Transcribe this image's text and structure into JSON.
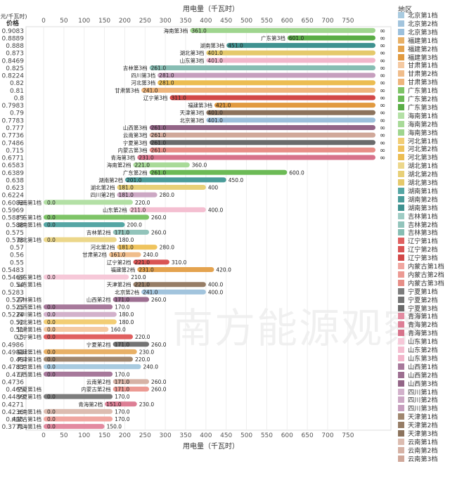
{
  "chart_data": {
    "type": "bar",
    "title": "",
    "xlabel": "用电量（千瓦时）",
    "ylabel": "(元/千瓦时)\n价格",
    "xlim": [
      0,
      800
    ],
    "x_ticks": [
      0,
      50,
      100,
      150,
      200,
      250,
      300,
      350,
      400,
      450,
      500,
      550,
      600,
      650,
      700,
      750
    ],
    "legend_title": "地区",
    "legend_position": "right",
    "infinity_label": "∞",
    "colors": {
      "北京第1档": "#a9cbe0",
      "北京第2档": "#a2c4dd",
      "北京第3档": "#9cc0dc",
      "福建第1档": "#e8b066",
      "福建第2档": "#e4a34f",
      "福建第3档": "#e19a40",
      "甘肃第1档": "#f4c9a1",
      "甘肃第2档": "#f0bd8b",
      "甘肃第3档": "#eeb57c",
      "广东第1档": "#7ec467",
      "广东第2档": "#6cba56",
      "广东第3档": "#5aad46",
      "海南第1档": "#b3e0a5",
      "海南第2档": "#a8da98",
      "海南第3档": "#9fd58e",
      "河北第1档": "#f2cd74",
      "河北第2档": "#efc45e",
      "河北第3档": "#ecbd52",
      "湖北第1档": "#ecd78a",
      "湖北第2档": "#e8d078",
      "湖北第3档": "#e5c96b",
      "湖南第1档": "#55a6a4",
      "湖南第2档": "#4a9c9a",
      "湖南第3档": "#3f9290",
      "吉林第1档": "#9fccc4",
      "吉林第2档": "#92c4bb",
      "吉林第3档": "#87bdb3",
      "辽宁第1档": "#e06060",
      "辽宁第2档": "#d95454",
      "辽宁第3档": "#d24848",
      "内蒙古第1档": "#f0a6a0",
      "内蒙古第2档": "#ec9a93",
      "内蒙古第3档": "#e78e87",
      "宁夏第1档": "#7d7d7d",
      "宁夏第2档": "#747474",
      "宁夏第3档": "#6b6b6b",
      "青海第1档": "#e38aa0",
      "青海第2档": "#dd7e95",
      "青海第3档": "#d7728a",
      "山东第1档": "#f6c8d8",
      "山东第2档": "#f4bfd1",
      "山东第3档": "#f2b6cb",
      "山西第1档": "#a7799b",
      "山西第2档": "#9d6f91",
      "山西第3档": "#936587",
      "四川第1档": "#d2b1cb",
      "四川第2档": "#cca8c4",
      "四川第3档": "#c69fbe",
      "天津第1档": "#a0876f",
      "天津第2档": "#967d66",
      "天津第3档": "#8c735d",
      "云南第1档": "#dcbcb0",
      "云南第2档": "#d6b2a5",
      "云南第3档": "#d0a89a"
    },
    "series_order": [
      "北京第1档",
      "北京第2档",
      "北京第3档",
      "福建第1档",
      "福建第2档",
      "福建第3档",
      "甘肃第1档",
      "甘肃第2档",
      "甘肃第3档",
      "广东第1档",
      "广东第2档",
      "广东第3档",
      "海南第1档",
      "海南第2档",
      "海南第3档",
      "河北第1档",
      "河北第2档",
      "河北第3档",
      "湖北第1档",
      "湖北第2档",
      "湖北第3档",
      "湖南第1档",
      "湖南第2档",
      "湖南第3档",
      "吉林第1档",
      "吉林第2档",
      "吉林第3档",
      "辽宁第1档",
      "辽宁第2档",
      "辽宁第3档",
      "内蒙古第1档",
      "内蒙古第2档",
      "内蒙古第3档",
      "宁夏第1档",
      "宁夏第2档",
      "宁夏第3档",
      "青海第1档",
      "青海第2档",
      "青海第3档",
      "山东第1档",
      "山东第2档",
      "山东第3档",
      "山西第1档",
      "山西第2档",
      "山西第3档",
      "四川第1档",
      "四川第2档",
      "四川第3档",
      "天津第1档",
      "天津第2档",
      "天津第3档",
      "云南第1档",
      "云南第2档",
      "云南第3档"
    ],
    "rows": [
      {
        "price": "0.9083",
        "bars": [
          {
            "series": "海南第3档",
            "start": 361.0,
            "start_label": "361.0",
            "end": null
          }
        ]
      },
      {
        "price": "0.8889",
        "bars": [
          {
            "series": "广东第3档",
            "start": 601.0,
            "start_label": "601.0",
            "end": null
          }
        ]
      },
      {
        "price": "0.888",
        "bars": [
          {
            "series": "湖南第3档",
            "start": 451.0,
            "start_label": "451.0",
            "end": null
          }
        ]
      },
      {
        "price": "0.873",
        "bars": [
          {
            "series": "湖北第3档",
            "start": 401.0,
            "start_label": "401.0",
            "end": null
          }
        ]
      },
      {
        "price": "0.8469",
        "bars": [
          {
            "series": "山东第3档",
            "start": 401.0,
            "start_label": "401.0",
            "end": null
          }
        ]
      },
      {
        "price": "0.825",
        "bars": [
          {
            "series": "吉林第3档",
            "start": 261.0,
            "start_label": "261.0",
            "end": null
          }
        ]
      },
      {
        "price": "0.8224",
        "bars": [
          {
            "series": "四川第3档",
            "start": 281.0,
            "start_label": "281.0",
            "end": null
          }
        ]
      },
      {
        "price": "0.82",
        "bars": [
          {
            "series": "河北第3档",
            "start": 281.0,
            "start_label": "281.0",
            "end": null
          }
        ]
      },
      {
        "price": "0.81",
        "bars": [
          {
            "series": "甘肃第3档",
            "start": 241.0,
            "start_label": "241.0",
            "end": null
          }
        ]
      },
      {
        "price": "0.8",
        "bars": [
          {
            "series": "辽宁第3档",
            "start": 311.0,
            "start_label": "311.0",
            "end": null
          }
        ]
      },
      {
        "price": "0.7983",
        "bars": [
          {
            "series": "福建第3档",
            "start": 421.0,
            "start_label": "421.0",
            "end": null
          }
        ]
      },
      {
        "price": "0.79",
        "bars": [
          {
            "series": "天津第3档",
            "start": 401.0,
            "start_label": "401.0",
            "end": null
          }
        ]
      },
      {
        "price": "0.7783",
        "bars": [
          {
            "series": "北京第3档",
            "start": 401.0,
            "start_label": "401.0",
            "end": null
          }
        ]
      },
      {
        "price": "0.777",
        "bars": [
          {
            "series": "山西第3档",
            "start": 261.0,
            "start_label": "261.0",
            "end": null
          }
        ]
      },
      {
        "price": "0.7736",
        "bars": [
          {
            "series": "云南第3档",
            "start": 261.0,
            "start_label": "261.0",
            "end": null
          }
        ]
      },
      {
        "price": "0.7486",
        "bars": [
          {
            "series": "宁夏第3档",
            "start": 261.0,
            "start_label": "261.0",
            "end": null
          }
        ]
      },
      {
        "price": "0.715",
        "bars": [
          {
            "series": "内蒙古第3档",
            "start": 261.0,
            "start_label": "261.0",
            "end": null
          }
        ]
      },
      {
        "price": "0.6771",
        "bars": [
          {
            "series": "青海第3档",
            "start": 231.0,
            "start_label": "231.0",
            "end": null
          }
        ]
      },
      {
        "price": "0.6583",
        "bars": [
          {
            "series": "海南第2档",
            "start": 221.0,
            "start_label": "221.0",
            "end": 360.0,
            "end_label": "360.0"
          }
        ]
      },
      {
        "price": "0.6389",
        "bars": [
          {
            "series": "广东第2档",
            "start": 261.0,
            "start_label": "261.0",
            "end": 600.0,
            "end_label": "600.0"
          }
        ]
      },
      {
        "price": "0.638",
        "bars": [
          {
            "series": "湖南第2档",
            "start": 201.0,
            "start_label": "201.0",
            "end": 450.0,
            "end_label": "450.0"
          }
        ]
      },
      {
        "price": "0.623",
        "bars": [
          {
            "series": "湖北第2档",
            "start": 181.0,
            "start_label": "181.0",
            "end": 400.0,
            "end_label": "400"
          }
        ]
      },
      {
        "price": "0.6224",
        "bars": [
          {
            "series": "四川第2档",
            "start": 181.0,
            "start_label": "181.0",
            "end": 280.0,
            "end_label": "280.0"
          }
        ]
      },
      {
        "price": "0.6083",
        "bars": [
          {
            "series": "海南第1档",
            "start": 0.0,
            "start_label": "0.0",
            "end": 220.0,
            "end_label": "220.0"
          }
        ]
      },
      {
        "price": "0.5969",
        "bars": [
          {
            "series": "山东第2档",
            "start": 211.0,
            "start_label": "211.0",
            "end": 400.0,
            "end_label": "400.0"
          }
        ]
      },
      {
        "price": "0.5889",
        "bars": [
          {
            "series": "广东第1档",
            "start": 0.0,
            "start_label": "0.0",
            "end": 260.0,
            "end_label": "260.0"
          }
        ]
      },
      {
        "price": "0.588",
        "bars": [
          {
            "series": "湖南第1档",
            "start": 0.0,
            "start_label": "0.0",
            "end": 200.0,
            "end_label": "200.0"
          }
        ]
      },
      {
        "price": "0.575",
        "bars": [
          {
            "series": "吉林第2档",
            "start": 171.0,
            "start_label": "171.0",
            "end": 260.0,
            "end_label": "260.0"
          }
        ]
      },
      {
        "price": "0.573",
        "bars": [
          {
            "series": "湖北第1档",
            "start": 0.0,
            "start_label": "0.0",
            "end": 180.0,
            "end_label": "180.0"
          }
        ]
      },
      {
        "price": "0.57",
        "bars": [
          {
            "series": "河北第2档",
            "start": 181.0,
            "start_label": "181.0",
            "end": 280.0,
            "end_label": "280.0"
          }
        ]
      },
      {
        "price": "0.56",
        "bars": [
          {
            "series": "甘肃第2档",
            "start": 161.0,
            "start_label": "161.0",
            "end": 240.0,
            "end_label": "240.0"
          }
        ]
      },
      {
        "price": "0.55",
        "bars": [
          {
            "series": "辽宁第2档",
            "start": 221.0,
            "start_label": "221.0",
            "end": 310.0,
            "end_label": "310.0"
          }
        ]
      },
      {
        "price": "0.5483",
        "bars": [
          {
            "series": "福建第2档",
            "start": 231.0,
            "start_label": "231.0",
            "end": 420.0,
            "end_label": "420.0"
          }
        ]
      },
      {
        "price": "0.5469",
        "bars": [
          {
            "series": "山东第1档",
            "start": 0.0,
            "start_label": "0.0",
            "end": 210.0,
            "end_label": "210.0"
          }
        ]
      },
      {
        "price": "0.54",
        "bars": [
          {
            "series": "山东第1档",
            "start": 0.0,
            "end": 0.0
          },
          {
            "series": "天津第2档",
            "start": 221.0,
            "start_label": "221.0",
            "end": 400.0,
            "end_label": "400.0"
          }
        ]
      },
      {
        "price": "0.5283",
        "bars": [
          {
            "series": "北京第2档",
            "start": 241.0,
            "start_label": "241.0",
            "end": 400.0,
            "end_label": "400.0"
          }
        ]
      },
      {
        "price": "0.527",
        "bars": [
          {
            "series": "吉林第1档",
            "start": 0.0,
            "end": 0.0
          },
          {
            "series": "山西第2档",
            "start": 171.0,
            "start_label": "171.0",
            "end": 260.0,
            "end_label": "260.0"
          }
        ]
      },
      {
        "price": "0.525",
        "bars": [
          {
            "series": "山西第1档",
            "start": 0.0,
            "start_label": "0.0",
            "end": 170.0,
            "end_label": "170.0"
          }
        ]
      },
      {
        "price": "0.5224",
        "bars": [
          {
            "series": "四川第1档",
            "start": 0.0,
            "start_label": "0.0",
            "end": 180.0,
            "end_label": "180.0"
          }
        ]
      },
      {
        "price": "0.52",
        "bars": [
          {
            "series": "河北第1档",
            "start": 0.0,
            "start_label": "0.0",
            "end": 180.0,
            "end_label": "180.0"
          }
        ]
      },
      {
        "price": "0.51",
        "bars": [
          {
            "series": "甘肃第1档",
            "start": 0.0,
            "start_label": "0.0",
            "end": 160.0,
            "end_label": "160.0"
          }
        ]
      },
      {
        "price": "0.5",
        "bars": [
          {
            "series": "辽宁第1档",
            "start": 0.0,
            "start_label": "0.0",
            "end": 220.0,
            "end_label": "220.0"
          }
        ]
      },
      {
        "price": "0.4986",
        "bars": [
          {
            "series": "宁夏第2档",
            "start": 171.0,
            "start_label": "171.0",
            "end": 260.0,
            "end_label": "260.0"
          }
        ]
      },
      {
        "price": "0.4983",
        "bars": [
          {
            "series": "福建第1档",
            "start": 0.0,
            "start_label": "0.0",
            "end": 230.0,
            "end_label": "230.0"
          }
        ]
      },
      {
        "price": "0.49",
        "bars": [
          {
            "series": "天津第1档",
            "start": 0.0,
            "start_label": "0.0",
            "end": 220.0,
            "end_label": "220.0"
          }
        ]
      },
      {
        "price": "0.4783",
        "bars": [
          {
            "series": "北京第1档",
            "start": 0.0,
            "start_label": "0.0",
            "end": 240.0,
            "end_label": "240.0"
          }
        ]
      },
      {
        "price": "0.477",
        "bars": [
          {
            "series": "山西第1档",
            "start": 0.0,
            "start_label": "0.0",
            "end": 170.0,
            "end_label": "170.0"
          }
        ]
      },
      {
        "price": "0.4736",
        "bars": [
          {
            "series": "云南第2档",
            "start": 171.0,
            "start_label": "171.0",
            "end": 260.0,
            "end_label": "260.0"
          }
        ]
      },
      {
        "price": "0.465",
        "bars": [
          {
            "series": "宁夏第1档",
            "start": 0.0,
            "end": 0.0
          },
          {
            "series": "内蒙古第2档",
            "start": 171.0,
            "start_label": "171.0",
            "end": 260.0,
            "end_label": "260.0"
          }
        ]
      },
      {
        "price": "0.4486",
        "bars": [
          {
            "series": "宁夏第1档",
            "start": 0.0,
            "start_label": "0.0",
            "end": 170.0,
            "end_label": "170.0"
          }
        ]
      },
      {
        "price": "0.4271",
        "bars": [
          {
            "series": "青海第2档",
            "start": 151.0,
            "start_label": "151.0",
            "end": 230.0,
            "end_label": "230.0"
          }
        ]
      },
      {
        "price": "0.4236",
        "bars": [
          {
            "series": "云南第1档",
            "start": 0.0,
            "start_label": "0.0",
            "end": 170.0,
            "end_label": "170.0"
          }
        ]
      },
      {
        "price": "0.415",
        "bars": [
          {
            "series": "内蒙古第1档",
            "start": 0.0,
            "start_label": "0.0",
            "end": 170.0,
            "end_label": "170.0"
          }
        ]
      },
      {
        "price": "0.3771",
        "bars": [
          {
            "series": "青海第1档",
            "start": 0.0,
            "start_label": "0.0",
            "end": 150.0,
            "end_label": "150.0"
          }
        ]
      }
    ]
  },
  "watermark_text": "南方能源观察"
}
